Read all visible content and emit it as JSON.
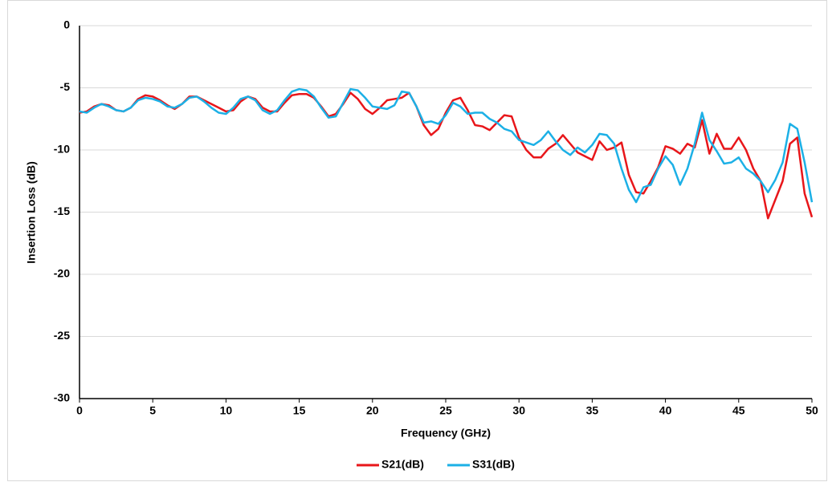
{
  "chart_data": {
    "type": "line",
    "xlabel": "Frequency (GHz)",
    "ylabel": "Insertion Loss (dB)",
    "x": [
      0,
      0.5,
      1,
      1.5,
      2,
      2.5,
      3,
      3.5,
      4,
      4.5,
      5,
      5.5,
      6,
      6.5,
      7,
      7.5,
      8,
      8.5,
      9,
      9.5,
      10,
      10.5,
      11,
      11.5,
      12,
      12.5,
      13,
      13.5,
      14,
      14.5,
      15,
      15.5,
      16,
      16.5,
      17,
      17.5,
      18,
      18.5,
      19,
      19.5,
      20,
      20.5,
      21,
      21.5,
      22,
      22.5,
      23,
      23.5,
      24,
      24.5,
      25,
      25.5,
      26,
      26.5,
      27,
      27.5,
      28,
      28.5,
      29,
      29.5,
      30,
      30.5,
      31,
      31.5,
      32,
      32.5,
      33,
      33.5,
      34,
      34.5,
      35,
      35.5,
      36,
      36.5,
      37,
      37.5,
      38,
      38.5,
      39,
      39.5,
      40,
      40.5,
      41,
      41.5,
      42,
      42.5,
      43,
      43.5,
      44,
      44.5,
      45,
      45.5,
      46,
      46.5,
      47,
      47.5,
      48,
      48.5,
      49,
      49.5,
      50
    ],
    "series": [
      {
        "name": "S21(dB)",
        "color": "#e8161a",
        "values": [
          -7.0,
          -6.9,
          -6.5,
          -6.3,
          -6.4,
          -6.8,
          -6.9,
          -6.6,
          -5.9,
          -5.6,
          -5.7,
          -6.0,
          -6.4,
          -6.7,
          -6.3,
          -5.7,
          -5.7,
          -6.0,
          -6.3,
          -6.6,
          -6.9,
          -6.8,
          -6.1,
          -5.7,
          -5.9,
          -6.6,
          -6.9,
          -6.9,
          -6.2,
          -5.6,
          -5.5,
          -5.5,
          -5.8,
          -6.5,
          -7.3,
          -7.1,
          -6.3,
          -5.4,
          -5.9,
          -6.7,
          -7.1,
          -6.6,
          -6.0,
          -5.9,
          -5.8,
          -5.4,
          -6.5,
          -8.0,
          -8.8,
          -8.3,
          -7.0,
          -6.0,
          -5.8,
          -6.8,
          -8.0,
          -8.1,
          -8.4,
          -7.8,
          -7.2,
          -7.3,
          -9.0,
          -10.0,
          -10.6,
          -10.6,
          -9.9,
          -9.5,
          -8.8,
          -9.5,
          -10.2,
          -10.5,
          -10.8,
          -9.3,
          -10.0,
          -9.8,
          -9.4,
          -12.0,
          -13.4,
          -13.5,
          -12.5,
          -11.4,
          -9.7,
          -9.9,
          -10.3,
          -9.5,
          -9.8,
          -7.6,
          -10.3,
          -8.7,
          -9.9,
          -9.9,
          -9.0,
          -10.0,
          -11.5,
          -12.5,
          -15.5,
          -14.0,
          -12.5,
          -9.5,
          -9.0,
          -13.5,
          -15.4
        ]
      },
      {
        "name": "S31(dB)",
        "color": "#1cb0e6",
        "values": [
          -6.9,
          -7.0,
          -6.6,
          -6.3,
          -6.5,
          -6.8,
          -6.9,
          -6.6,
          -6.0,
          -5.8,
          -5.9,
          -6.1,
          -6.5,
          -6.6,
          -6.3,
          -5.8,
          -5.7,
          -6.1,
          -6.6,
          -7.0,
          -7.1,
          -6.6,
          -5.9,
          -5.7,
          -6.0,
          -6.8,
          -7.1,
          -6.8,
          -6.0,
          -5.3,
          -5.1,
          -5.2,
          -5.7,
          -6.6,
          -7.4,
          -7.3,
          -6.2,
          -5.1,
          -5.2,
          -5.8,
          -6.5,
          -6.6,
          -6.7,
          -6.4,
          -5.3,
          -5.4,
          -6.5,
          -7.8,
          -7.7,
          -7.9,
          -7.2,
          -6.2,
          -6.5,
          -7.1,
          -7.0,
          -7.0,
          -7.5,
          -7.8,
          -8.3,
          -8.5,
          -9.2,
          -9.4,
          -9.6,
          -9.2,
          -8.5,
          -9.3,
          -10.0,
          -10.4,
          -9.8,
          -10.2,
          -9.6,
          -8.7,
          -8.8,
          -9.5,
          -11.5,
          -13.2,
          -14.2,
          -13.0,
          -12.8,
          -11.5,
          -10.5,
          -11.2,
          -12.8,
          -11.5,
          -9.5,
          -7.0,
          -9.2,
          -10.1,
          -11.1,
          -11.0,
          -10.6,
          -11.5,
          -11.9,
          -12.5,
          -13.4,
          -12.4,
          -11.0,
          -7.9,
          -8.3,
          -11.0,
          -14.2
        ]
      }
    ],
    "xlim": [
      0,
      50
    ],
    "xticks": [
      0,
      5,
      10,
      15,
      20,
      25,
      30,
      35,
      40,
      45,
      50
    ],
    "ylim": [
      -30,
      0
    ],
    "yticks": [
      -30,
      -25,
      -20,
      -15,
      -10,
      -5,
      0
    ],
    "grid": true,
    "legend": "bottom"
  }
}
